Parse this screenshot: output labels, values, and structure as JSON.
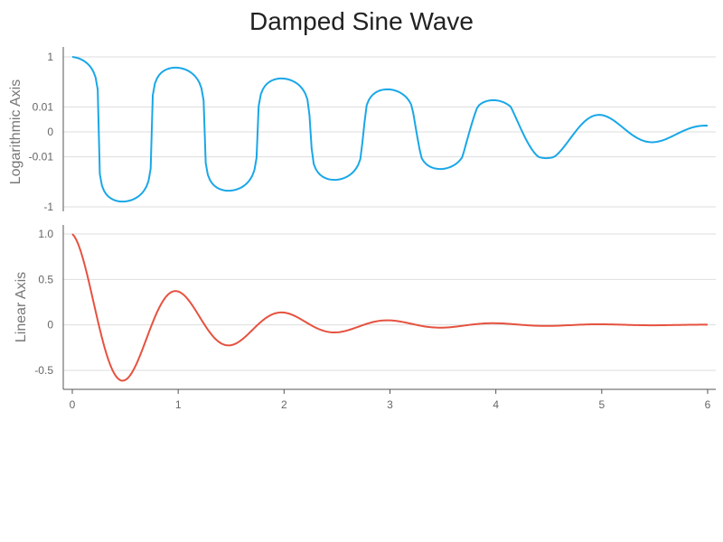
{
  "chart_data": {
    "title": "Damped Sine Wave",
    "type": "line",
    "function": "y = cos(2πx) · exp(−x)",
    "x_range": [
      0,
      6
    ],
    "x_ticks": [
      0,
      1,
      2,
      3,
      4,
      5,
      6
    ],
    "subplots": [
      {
        "ylabel": "Logarithmic Axis",
        "yscale": "symlog",
        "y_ticks": [
          1,
          0.01,
          0,
          -0.01,
          -1
        ],
        "y_tick_labels": [
          "1",
          "0.01",
          "0",
          "-0.01",
          "-1"
        ],
        "series": [
          {
            "color": "#1aa7e8",
            "x_step": 0.02
          }
        ]
      },
      {
        "ylabel": "Linear Axis",
        "yscale": "linear",
        "ylim": [
          -0.7,
          1.1
        ],
        "y_ticks": [
          1.0,
          0.5,
          0,
          -0.5
        ],
        "y_tick_labels": [
          "1.0",
          "0.5",
          "0",
          "-0.5"
        ],
        "series": [
          {
            "color": "#e5523f",
            "x_step": 0.02
          }
        ]
      }
    ],
    "grid": true
  }
}
